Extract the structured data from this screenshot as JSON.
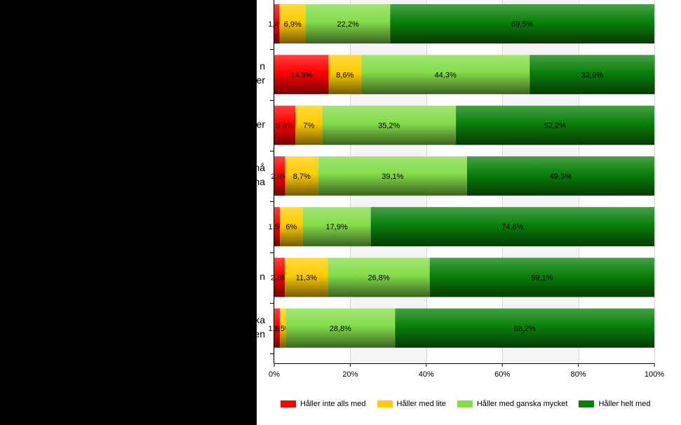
{
  "chart_data": {
    "type": "bar",
    "orientation": "horizontal",
    "stacked": true,
    "title": "",
    "xlabel": "",
    "ylabel": "",
    "xlim": [
      0,
      100
    ],
    "x_ticks": [
      "0%",
      "20%",
      "40%",
      "60%",
      "80%",
      "100%"
    ],
    "grid": true,
    "legend_position": "bottom",
    "category_label_fragments": [
      [],
      [
        "n",
        "er"
      ],
      [
        "er"
      ],
      [
        "nå",
        "na"
      ],
      [],
      [
        "n"
      ],
      [
        "ka",
        "en"
      ]
    ],
    "series": [
      {
        "name": "Håller inte alls med",
        "color": "#ff0000",
        "values": [
          1.4,
          14.3,
          5.6,
          2.9,
          1.5,
          2.8,
          1.5
        ],
        "labels": [
          "1,4%",
          "14,3%",
          "5,6%",
          "2,9%",
          "1,5%",
          "2,8%",
          "1,5%"
        ]
      },
      {
        "name": "Håller med lite",
        "color": "#ffcc00",
        "values": [
          6.9,
          8.6,
          7,
          8.7,
          6,
          11.3,
          1.5
        ],
        "labels": [
          "6,9%",
          "8,6%",
          "7%",
          "8,7%",
          "6%",
          "11,3%",
          "1,5%"
        ]
      },
      {
        "name": "Håller med ganska mycket",
        "color": "#84dc4a",
        "values": [
          22.2,
          44.3,
          35.2,
          39.1,
          17.9,
          26.8,
          28.8
        ],
        "labels": [
          "22,2%",
          "44,3%",
          "35,2%",
          "39,1%",
          "17,9%",
          "26,8%",
          "28,8%"
        ]
      },
      {
        "name": "Håller helt med",
        "color": "#0a800a",
        "values": [
          69.5,
          32.9,
          52.2,
          49.3,
          74.6,
          59.1,
          68.2
        ],
        "labels": [
          "69,5%",
          "32,9%",
          "52,2%",
          "49,3%",
          "74,6%",
          "59,1%",
          "68,2%"
        ]
      }
    ]
  }
}
